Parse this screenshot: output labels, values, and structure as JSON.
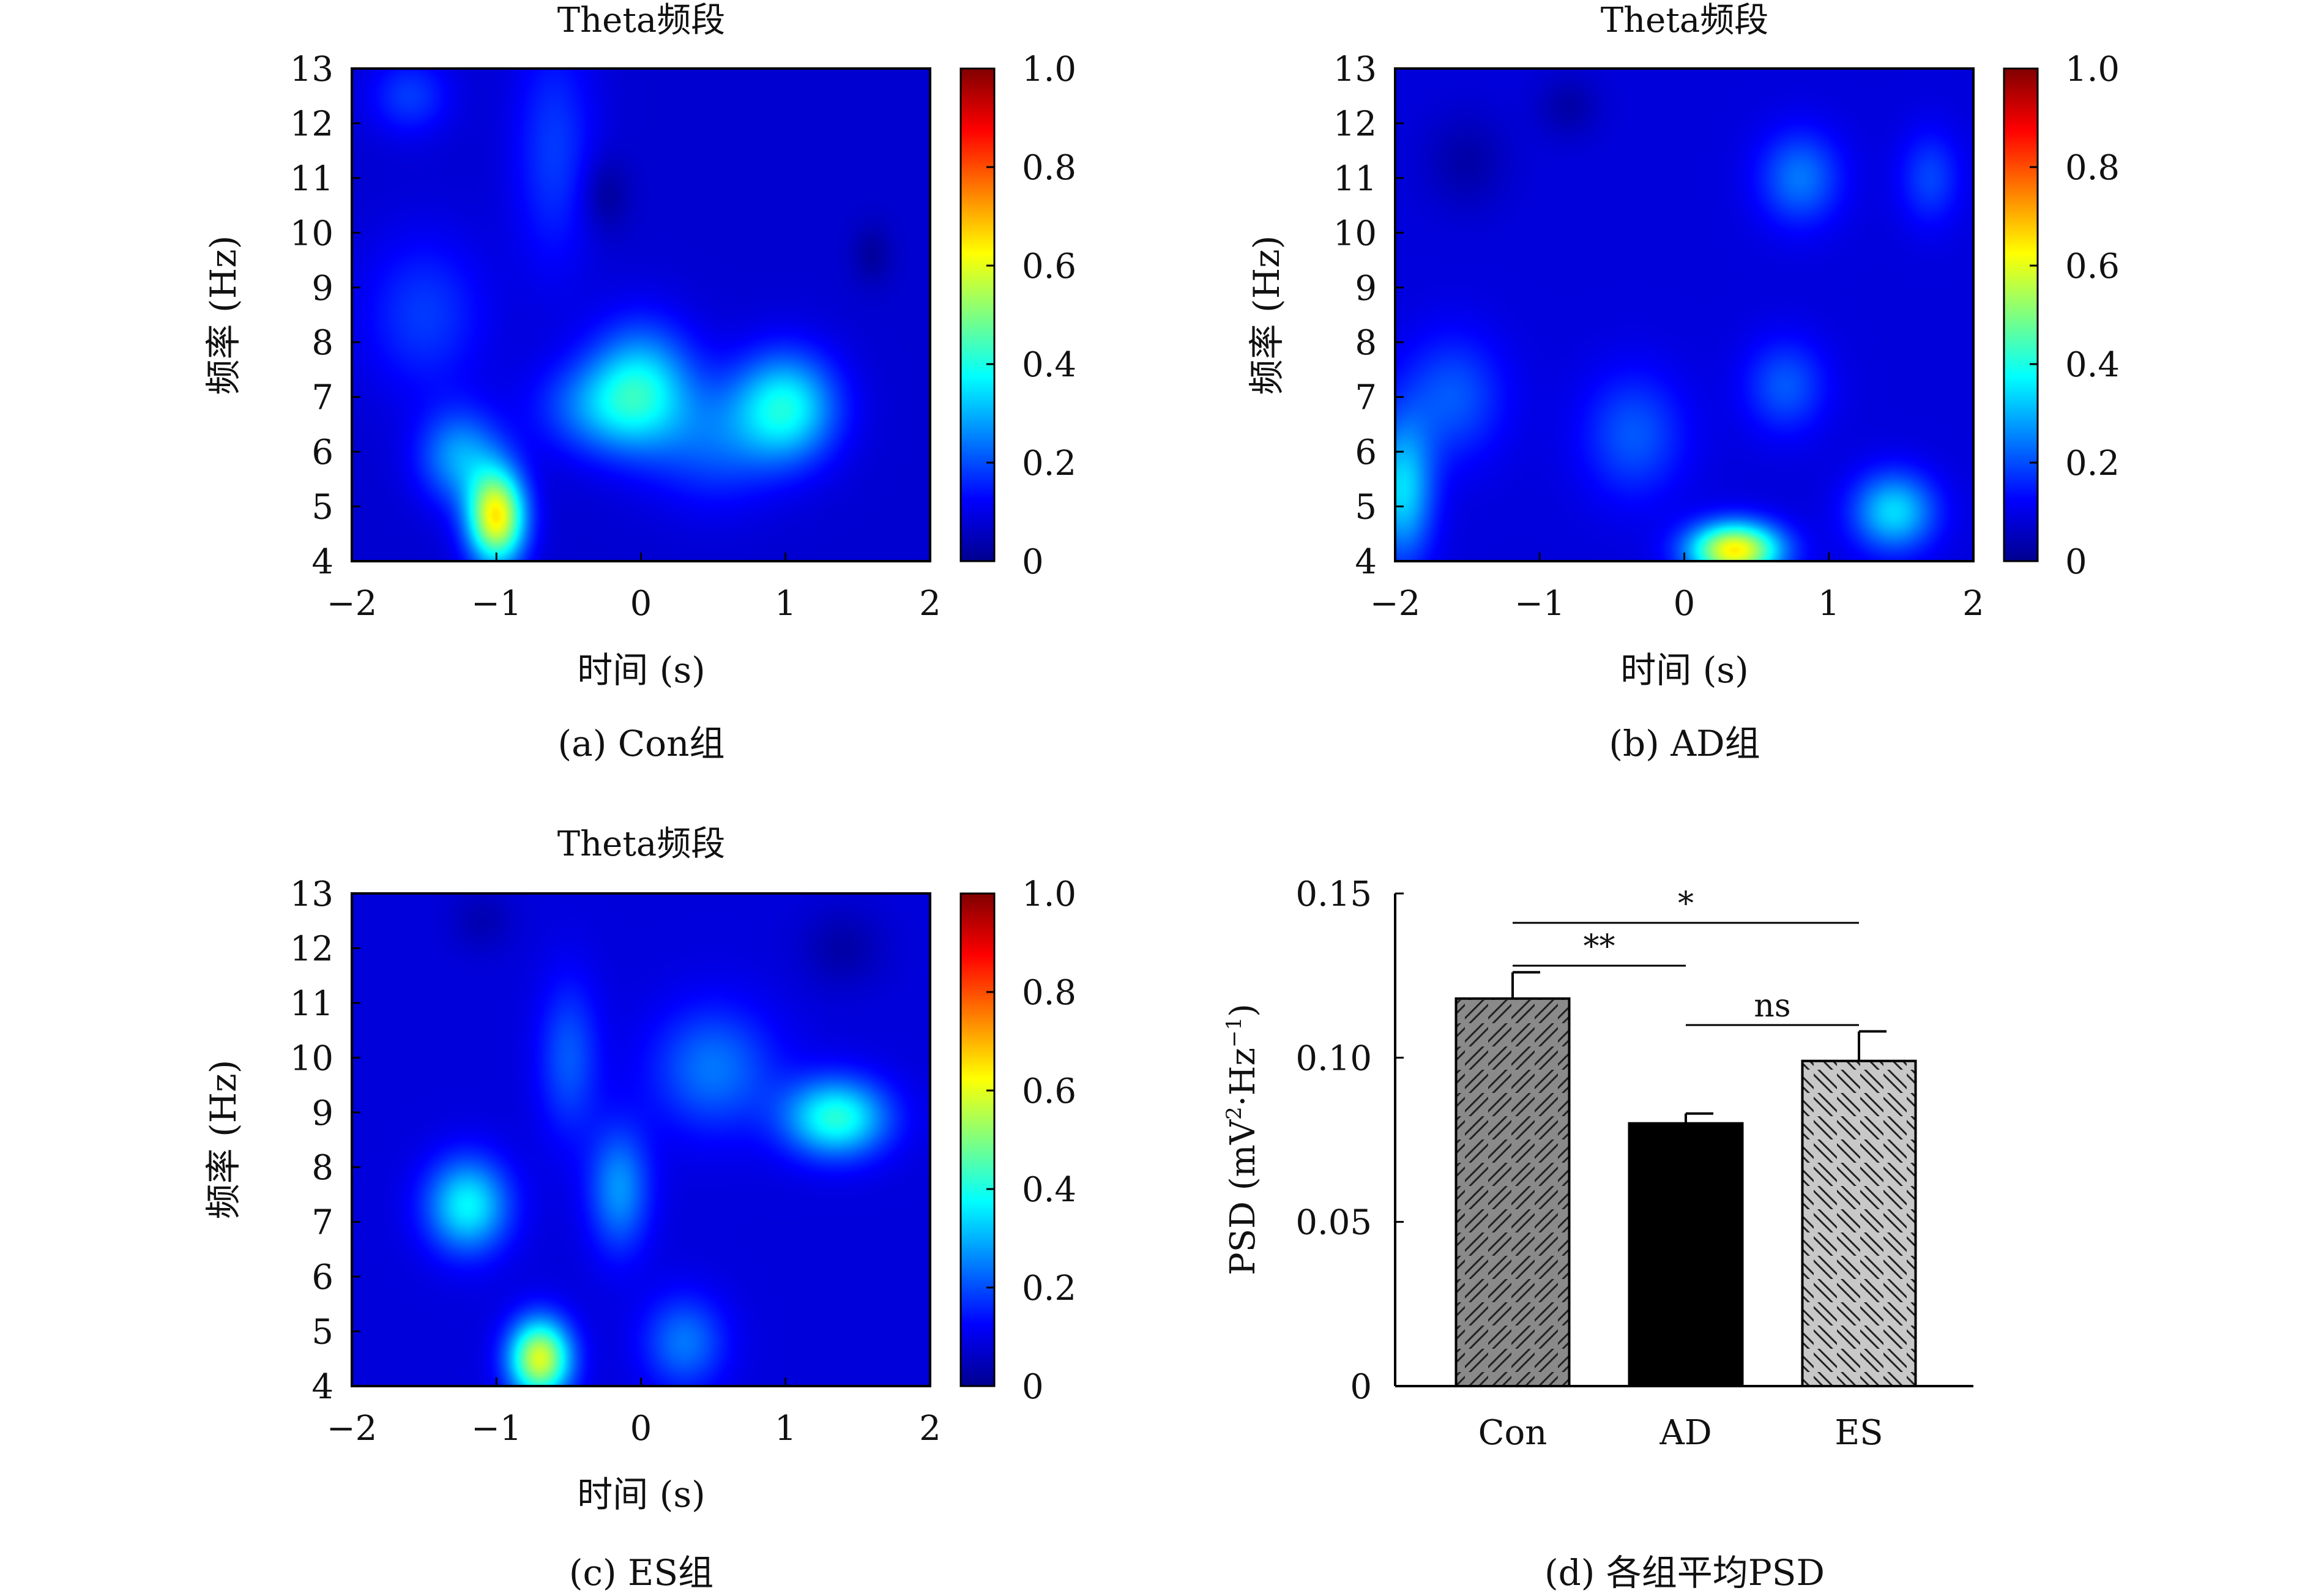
{
  "colormap": "jet",
  "panels": [
    {
      "id": "a",
      "caption": "(a) Con组",
      "title": "Theta频段",
      "xlabel": "时间 (s)",
      "ylabel": "频率 (Hz)",
      "xticks": [
        "−2",
        "−1",
        "0",
        "1",
        "2"
      ],
      "yticks": [
        "13",
        "12",
        "11",
        "10",
        "9",
        "8",
        "7",
        "6",
        "5",
        "4"
      ],
      "cbticks": [
        "1.0",
        "0.8",
        "0.6",
        "0.4",
        "0.2",
        "0"
      ]
    },
    {
      "id": "b",
      "caption": "(b) AD组",
      "title": "Theta频段",
      "xlabel": "时间 (s)",
      "ylabel": "频率 (Hz)",
      "xticks": [
        "−2",
        "−1",
        "0",
        "1",
        "2"
      ],
      "yticks": [
        "13",
        "12",
        "11",
        "10",
        "9",
        "8",
        "7",
        "6",
        "5",
        "4"
      ],
      "cbticks": [
        "1.0",
        "0.8",
        "0.6",
        "0.4",
        "0.2",
        "0"
      ]
    },
    {
      "id": "c",
      "caption": "(c) ES组",
      "title": "Theta频段",
      "xlabel": "时间 (s)",
      "ylabel": "频率 (Hz)",
      "xticks": [
        "−2",
        "−1",
        "0",
        "1",
        "2"
      ],
      "yticks": [
        "13",
        "12",
        "11",
        "10",
        "9",
        "8",
        "7",
        "6",
        "5",
        "4"
      ],
      "cbticks": [
        "1.0",
        "0.8",
        "0.6",
        "0.4",
        "0.2",
        "0"
      ]
    }
  ],
  "bar_panel": {
    "caption": "(d) 各组平均PSD",
    "ylabel_main": "PSD (mV",
    "ylabel_sup1": "2",
    "ylabel_mid": "·Hz",
    "ylabel_sup2": "−1",
    "ylabel_end": ")",
    "yticks": [
      "0.15",
      "0.10",
      "0.05",
      "0"
    ],
    "sig": [
      {
        "text": "*",
        "from": "Con",
        "to": "ES"
      },
      {
        "text": "**",
        "from": "Con",
        "to": "AD"
      },
      {
        "text": "ns",
        "from": "AD",
        "to": "ES"
      }
    ]
  },
  "chart_data": [
    {
      "type": "heatmap",
      "title": "Theta频段",
      "xlabel": "时间 (s)",
      "ylabel": "频率 (Hz)",
      "xlim": [
        -2,
        2
      ],
      "ylim": [
        4,
        13
      ],
      "zlim": [
        0,
        1
      ],
      "background": 0.08,
      "blobs": [
        {
          "x": -1.0,
          "y": 4.8,
          "amp": 0.55,
          "sx": 0.14,
          "sy": 0.6
        },
        {
          "x": -1.25,
          "y": 5.9,
          "amp": 0.2,
          "sx": 0.2,
          "sy": 0.6
        },
        {
          "x": 0.0,
          "y": 7.2,
          "amp": 0.25,
          "sx": 0.25,
          "sy": 0.8
        },
        {
          "x": 1.0,
          "y": 6.8,
          "amp": 0.3,
          "sx": 0.25,
          "sy": 0.7
        },
        {
          "x": -0.3,
          "y": 6.8,
          "amp": 0.15,
          "sx": 0.3,
          "sy": 0.6
        },
        {
          "x": 0.5,
          "y": 6.2,
          "amp": 0.12,
          "sx": 0.3,
          "sy": 0.8
        },
        {
          "x": -1.5,
          "y": 8.5,
          "amp": 0.1,
          "sx": 0.3,
          "sy": 1.0
        },
        {
          "x": -0.6,
          "y": 11.5,
          "amp": 0.1,
          "sx": 0.2,
          "sy": 1.5
        },
        {
          "x": -1.6,
          "y": 12.5,
          "amp": 0.1,
          "sx": 0.2,
          "sy": 0.5
        },
        {
          "x": -0.25,
          "y": 10.7,
          "amp": -0.06,
          "sx": 0.12,
          "sy": 0.5
        },
        {
          "x": 1.6,
          "y": 9.6,
          "amp": -0.05,
          "sx": 0.1,
          "sy": 0.4
        }
      ]
    },
    {
      "type": "heatmap",
      "title": "Theta频段",
      "xlabel": "时间 (s)",
      "ylabel": "频率 (Hz)",
      "xlim": [
        -2,
        2
      ],
      "ylim": [
        4,
        13
      ],
      "zlim": [
        0,
        1
      ],
      "background": 0.09,
      "blobs": [
        {
          "x": 0.35,
          "y": 4.2,
          "amp": 0.55,
          "sx": 0.22,
          "sy": 0.35
        },
        {
          "x": -1.95,
          "y": 5.3,
          "amp": 0.25,
          "sx": 0.15,
          "sy": 0.9
        },
        {
          "x": 1.45,
          "y": 4.9,
          "amp": 0.25,
          "sx": 0.2,
          "sy": 0.5
        },
        {
          "x": 0.8,
          "y": 11.0,
          "amp": 0.15,
          "sx": 0.2,
          "sy": 0.6
        },
        {
          "x": 0.7,
          "y": 7.2,
          "amp": 0.12,
          "sx": 0.2,
          "sy": 0.6
        },
        {
          "x": -0.35,
          "y": 6.3,
          "amp": 0.12,
          "sx": 0.25,
          "sy": 0.8
        },
        {
          "x": -1.6,
          "y": 7.0,
          "amp": 0.12,
          "sx": 0.25,
          "sy": 0.8
        },
        {
          "x": 1.7,
          "y": 11.0,
          "amp": 0.1,
          "sx": 0.15,
          "sy": 0.6
        },
        {
          "x": -1.5,
          "y": 11.3,
          "amp": -0.05,
          "sx": 0.2,
          "sy": 0.6
        },
        {
          "x": -0.8,
          "y": 12.3,
          "amp": -0.05,
          "sx": 0.15,
          "sy": 0.4
        }
      ]
    },
    {
      "type": "heatmap",
      "title": "Theta频段",
      "xlabel": "时间 (s)",
      "ylabel": "频率 (Hz)",
      "xlim": [
        -2,
        2
      ],
      "ylim": [
        4,
        13
      ],
      "zlim": [
        0,
        1
      ],
      "background": 0.09,
      "blobs": [
        {
          "x": -0.7,
          "y": 4.5,
          "amp": 0.5,
          "sx": 0.15,
          "sy": 0.5
        },
        {
          "x": -1.2,
          "y": 7.3,
          "amp": 0.28,
          "sx": 0.2,
          "sy": 0.6
        },
        {
          "x": 1.35,
          "y": 8.9,
          "amp": 0.32,
          "sx": 0.25,
          "sy": 0.5
        },
        {
          "x": -0.15,
          "y": 7.6,
          "amp": 0.18,
          "sx": 0.15,
          "sy": 0.8
        },
        {
          "x": -0.5,
          "y": 10.0,
          "amp": 0.12,
          "sx": 0.15,
          "sy": 1.0
        },
        {
          "x": 0.5,
          "y": 9.8,
          "amp": 0.15,
          "sx": 0.3,
          "sy": 0.8
        },
        {
          "x": 0.3,
          "y": 4.8,
          "amp": 0.15,
          "sx": 0.2,
          "sy": 0.6
        },
        {
          "x": 1.4,
          "y": 12.0,
          "amp": -0.05,
          "sx": 0.2,
          "sy": 0.5
        },
        {
          "x": -1.1,
          "y": 12.5,
          "amp": -0.04,
          "sx": 0.15,
          "sy": 0.4
        }
      ]
    },
    {
      "type": "bar",
      "categories": [
        "Con",
        "AD",
        "ES"
      ],
      "values": [
        0.118,
        0.08,
        0.099
      ],
      "errors": [
        0.008,
        0.003,
        0.009
      ],
      "ylim": [
        0,
        0.15
      ],
      "patterns": [
        "hatch-forward-dark",
        "solid-black",
        "hatch-back-light"
      ]
    }
  ]
}
